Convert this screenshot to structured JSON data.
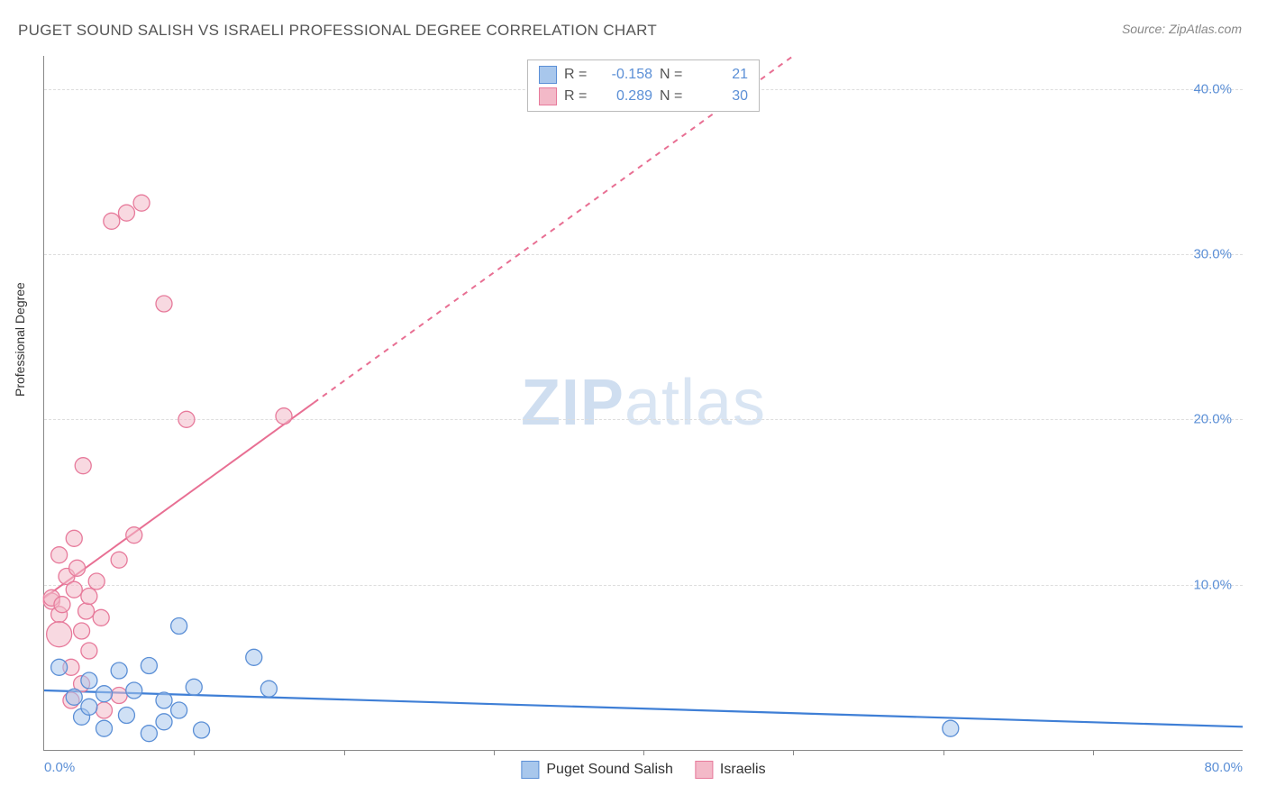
{
  "title": "PUGET SOUND SALISH VS ISRAELI PROFESSIONAL DEGREE CORRELATION CHART",
  "source": "Source: ZipAtlas.com",
  "ylabel": "Professional Degree",
  "watermark_bold": "ZIP",
  "watermark_rest": "atlas",
  "chart": {
    "type": "scatter",
    "xlim": [
      0,
      80
    ],
    "ylim": [
      0,
      42
    ],
    "xticks": [
      {
        "v": 0,
        "label": "0.0%"
      },
      {
        "v": 80,
        "label": "80.0%"
      }
    ],
    "yticks": [
      {
        "v": 10,
        "label": "10.0%"
      },
      {
        "v": 20,
        "label": "20.0%"
      },
      {
        "v": 30,
        "label": "30.0%"
      },
      {
        "v": 40,
        "label": "40.0%"
      }
    ],
    "grid_color": "#dddddd",
    "axis_color": "#888888",
    "tick_label_color": "#5b8fd6",
    "background_color": "#ffffff",
    "series": [
      {
        "name": "Puget Sound Salish",
        "fill": "#a8c7ec",
        "stroke": "#5b8fd6",
        "fill_opacity": 0.55,
        "marker_r": 9,
        "R_label": "R =",
        "R": "-0.158",
        "N_label": "N =",
        "N": "21",
        "trend": {
          "x1": 0,
          "y1": 3.6,
          "x2": 80,
          "y2": 1.4,
          "color": "#3f7fd6",
          "width": 2.2,
          "dash_from_x": null
        },
        "points": [
          {
            "x": 1,
            "y": 5.0
          },
          {
            "x": 2,
            "y": 3.2
          },
          {
            "x": 2.5,
            "y": 2.0
          },
          {
            "x": 3,
            "y": 4.2
          },
          {
            "x": 3,
            "y": 2.6
          },
          {
            "x": 4,
            "y": 3.4
          },
          {
            "x": 4,
            "y": 1.3
          },
          {
            "x": 5,
            "y": 4.8
          },
          {
            "x": 5.5,
            "y": 2.1
          },
          {
            "x": 6,
            "y": 3.6
          },
          {
            "x": 7,
            "y": 5.1
          },
          {
            "x": 7,
            "y": 1.0
          },
          {
            "x": 8,
            "y": 3.0
          },
          {
            "x": 8,
            "y": 1.7
          },
          {
            "x": 9,
            "y": 7.5
          },
          {
            "x": 9,
            "y": 2.4
          },
          {
            "x": 10,
            "y": 3.8
          },
          {
            "x": 10.5,
            "y": 1.2
          },
          {
            "x": 14,
            "y": 5.6
          },
          {
            "x": 15,
            "y": 3.7
          },
          {
            "x": 60.5,
            "y": 1.3
          }
        ]
      },
      {
        "name": "Israelis",
        "fill": "#f3b9c8",
        "stroke": "#e77a9b",
        "fill_opacity": 0.55,
        "marker_r": 9,
        "R_label": "R =",
        "R": "0.289",
        "N_label": "N =",
        "N": "30",
        "trend": {
          "x1": 0,
          "y1": 9.2,
          "x2": 50,
          "y2": 42,
          "color": "#e86f93",
          "width": 2,
          "dash_from_x": 18
        },
        "points": [
          {
            "x": 0.5,
            "y": 9.0
          },
          {
            "x": 0.5,
            "y": 9.2
          },
          {
            "x": 1,
            "y": 8.2
          },
          {
            "x": 1,
            "y": 11.8
          },
          {
            "x": 1,
            "y": 7.0,
            "r": 14
          },
          {
            "x": 1.2,
            "y": 8.8
          },
          {
            "x": 1.5,
            "y": 10.5
          },
          {
            "x": 1.8,
            "y": 5.0
          },
          {
            "x": 1.8,
            "y": 3.0
          },
          {
            "x": 2,
            "y": 9.7
          },
          {
            "x": 2,
            "y": 12.8
          },
          {
            "x": 2.2,
            "y": 11.0
          },
          {
            "x": 2.5,
            "y": 7.2
          },
          {
            "x": 2.5,
            "y": 4.0
          },
          {
            "x": 2.6,
            "y": 17.2
          },
          {
            "x": 2.8,
            "y": 8.4
          },
          {
            "x": 3,
            "y": 9.3
          },
          {
            "x": 3,
            "y": 6.0
          },
          {
            "x": 3.5,
            "y": 10.2
          },
          {
            "x": 3.8,
            "y": 8.0
          },
          {
            "x": 4,
            "y": 2.4
          },
          {
            "x": 4.5,
            "y": 32.0
          },
          {
            "x": 5,
            "y": 11.5
          },
          {
            "x": 5,
            "y": 3.3
          },
          {
            "x": 5.5,
            "y": 32.5
          },
          {
            "x": 6,
            "y": 13.0
          },
          {
            "x": 6.5,
            "y": 33.1
          },
          {
            "x": 8,
            "y": 27.0
          },
          {
            "x": 9.5,
            "y": 20.0
          },
          {
            "x": 16,
            "y": 20.2
          }
        ]
      }
    ]
  },
  "legend": {
    "series1_label": "Puget Sound Salish",
    "series2_label": "Israelis"
  }
}
